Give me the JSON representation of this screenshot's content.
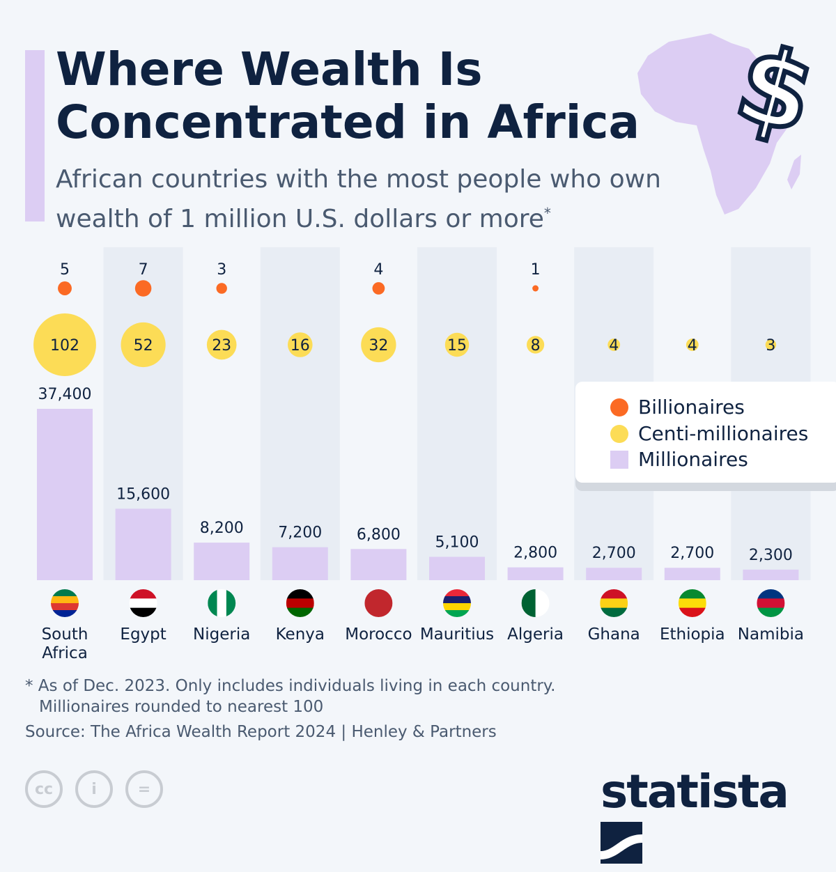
{
  "title": "Where Wealth Is Concentrated in Africa",
  "title_lines": [
    "Where Wealth Is",
    "Concentrated in Africa"
  ],
  "subtitle_lines": [
    "African countries with the most people who own",
    "wealth of 1 million U.S. dollars or more"
  ],
  "subtitle_mark": "*",
  "footnote_lines": [
    "* As of Dec. 2023. Only includes individuals living in each country.",
    "Millionaires rounded to nearest 100"
  ],
  "source": "Source: The Africa Wealth Report 2024 | Henley & Partners",
  "brand": "statista",
  "license_icons": [
    "cc-icon",
    "attribution-icon",
    "no-derivatives-icon"
  ],
  "colors": {
    "billionaires": "#fb6a24",
    "centi": "#fcdc56",
    "millionaires": "#dccdf3",
    "text": "#0f2240"
  },
  "chart_data": {
    "type": "bar",
    "categories": [
      "South Africa",
      "Egypt",
      "Nigeria",
      "Kenya",
      "Morocco",
      "Mauritius",
      "Algeria",
      "Ghana",
      "Ethiopia",
      "Namibia"
    ],
    "series": [
      {
        "name": "Billionaires",
        "type": "bubble",
        "values": [
          5,
          7,
          3,
          null,
          4,
          null,
          1,
          null,
          null,
          null
        ]
      },
      {
        "name": "Centi-millionaires",
        "type": "bubble",
        "values": [
          102,
          52,
          23,
          16,
          32,
          15,
          8,
          4,
          4,
          3
        ]
      },
      {
        "name": "Millionaires",
        "type": "bar",
        "values": [
          37400,
          15600,
          8200,
          7200,
          6800,
          5100,
          2800,
          2700,
          2700,
          2300
        ],
        "labels": [
          "37,400",
          "15,600",
          "8,200",
          "7,200",
          "6,800",
          "5,100",
          "2,800",
          "2,700",
          "2,700",
          "2,300"
        ]
      }
    ],
    "legend": [
      "Billionaires",
      "Centi-millionaires",
      "Millionaires"
    ],
    "legend_position": "right",
    "grid": false
  }
}
